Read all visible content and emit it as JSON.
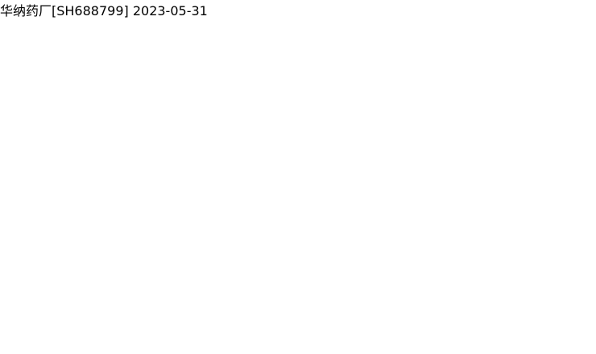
{
  "title": "华纳药厂[SH688799] 2023-05-31",
  "chart_data": {
    "type": "candlestick",
    "title": "华纳药厂[SH688799] 2023-05-31"
  }
}
